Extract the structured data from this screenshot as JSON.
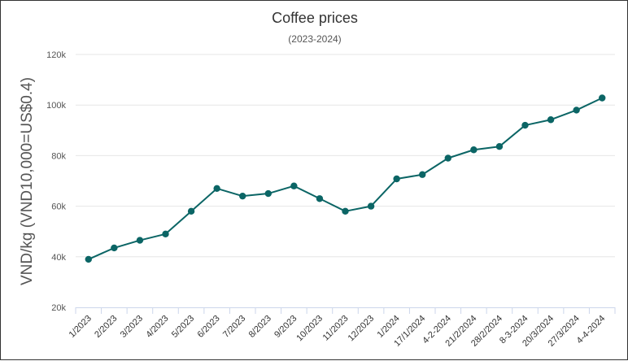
{
  "chart_data": {
    "type": "line",
    "title": "Coffee prices",
    "subtitle": "(2023-2024)",
    "xlabel": "",
    "ylabel": "VND/kg (VND10,000=US$0.4)",
    "categories": [
      "1/2023",
      "2/2023",
      "3/2023",
      "4/2023",
      "5/2023",
      "6/2023",
      "7/2023",
      "8/2023",
      "9/2023",
      "10/2023",
      "11/2023",
      "12/2023",
      "1/2024",
      "17/1/2024",
      "4-2-2024",
      "21/2/2024",
      "28/2/2024",
      "8-3-2024",
      "20/3/2024",
      "27/3/2024",
      "4-4-2024"
    ],
    "series": [
      {
        "values": [
          39000,
          43500,
          46500,
          49000,
          58000,
          67000,
          64000,
          65000,
          68000,
          63000,
          58000,
          60000,
          70800,
          72500,
          79000,
          82300,
          83600,
          92000,
          94200,
          98000,
          102800
        ],
        "color": "#0b6565"
      }
    ],
    "ylim": [
      20000,
      120000
    ],
    "yticks": [
      20000,
      40000,
      60000,
      80000,
      100000,
      120000
    ],
    "ytick_labels": [
      "20k",
      "40k",
      "60k",
      "80k",
      "100k",
      "120k"
    ],
    "grid": true,
    "legend": "none"
  }
}
